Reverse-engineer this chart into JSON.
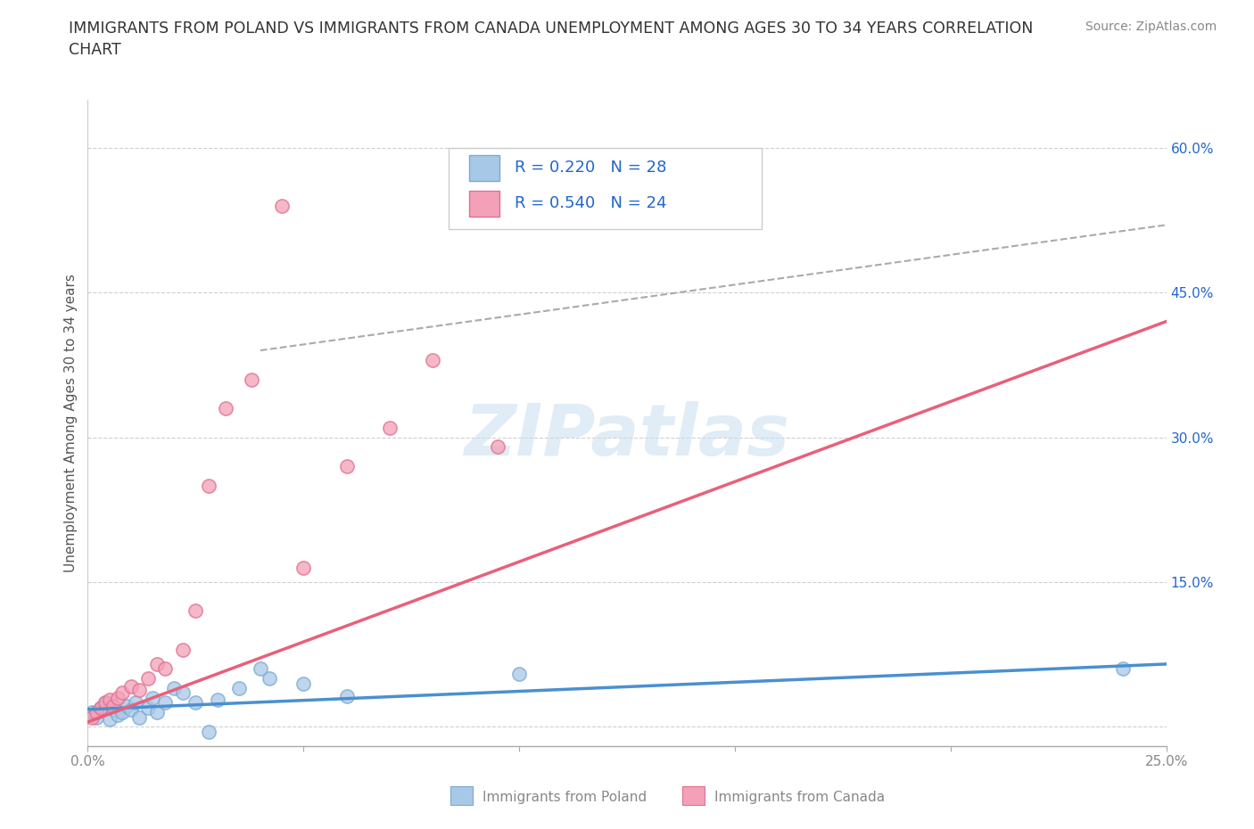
{
  "title": "IMMIGRANTS FROM POLAND VS IMMIGRANTS FROM CANADA UNEMPLOYMENT AMONG AGES 30 TO 34 YEARS CORRELATION\nCHART",
  "source_text": "Source: ZipAtlas.com",
  "ylabel": "Unemployment Among Ages 30 to 34 years",
  "xlim": [
    0.0,
    0.25
  ],
  "ylim": [
    -0.02,
    0.65
  ],
  "xticks": [
    0.0,
    0.05,
    0.1,
    0.15,
    0.2,
    0.25
  ],
  "xticklabels": [
    "0.0%",
    "",
    "",
    "",
    "",
    "25.0%"
  ],
  "yticks": [
    0.0,
    0.15,
    0.3,
    0.45,
    0.6
  ],
  "yticklabels": [
    "",
    "15.0%",
    "30.0%",
    "45.0%",
    "60.0%"
  ],
  "poland_color": "#a8c8e8",
  "canada_color": "#f4a0b8",
  "poland_edge_color": "#7aaad0",
  "canada_edge_color": "#e07090",
  "poland_line_color": "#4a90d0",
  "canada_line_color": "#e8607a",
  "poland_R": 0.22,
  "poland_N": 28,
  "canada_R": 0.54,
  "canada_N": 24,
  "legend_label_poland": "Immigrants from Poland",
  "legend_label_canada": "Immigrants from Canada",
  "watermark": "ZIPatlas",
  "background_color": "#ffffff",
  "grid_color": "#d0d0d0",
  "title_color": "#333333",
  "axis_label_color": "#555555",
  "tick_color": "#888888",
  "legend_text_color": "#2266cc",
  "poland_scatter_x": [
    0.001,
    0.002,
    0.003,
    0.004,
    0.005,
    0.006,
    0.007,
    0.008,
    0.009,
    0.01,
    0.011,
    0.012,
    0.014,
    0.015,
    0.016,
    0.018,
    0.02,
    0.022,
    0.025,
    0.028,
    0.03,
    0.035,
    0.04,
    0.042,
    0.05,
    0.06,
    0.1,
    0.24
  ],
  "poland_scatter_y": [
    0.015,
    0.01,
    0.02,
    0.025,
    0.008,
    0.018,
    0.012,
    0.015,
    0.022,
    0.018,
    0.025,
    0.01,
    0.02,
    0.03,
    0.015,
    0.025,
    0.04,
    0.035,
    0.025,
    -0.005,
    0.028,
    0.04,
    0.06,
    0.05,
    0.045,
    0.032,
    0.055,
    0.06
  ],
  "canada_scatter_x": [
    0.001,
    0.002,
    0.003,
    0.004,
    0.005,
    0.006,
    0.007,
    0.008,
    0.01,
    0.012,
    0.014,
    0.016,
    0.018,
    0.022,
    0.025,
    0.028,
    0.032,
    0.038,
    0.045,
    0.05,
    0.06,
    0.07,
    0.08,
    0.095
  ],
  "canada_scatter_y": [
    0.01,
    0.015,
    0.02,
    0.025,
    0.028,
    0.022,
    0.03,
    0.035,
    0.042,
    0.038,
    0.05,
    0.065,
    0.06,
    0.08,
    0.12,
    0.25,
    0.33,
    0.36,
    0.54,
    0.165,
    0.27,
    0.31,
    0.38,
    0.29
  ],
  "dashed_line_x": [
    0.04,
    0.25
  ],
  "dashed_line_y": [
    0.39,
    0.52
  ],
  "poland_trend_x": [
    0.0,
    0.25
  ],
  "poland_trend_y": [
    0.018,
    0.065
  ],
  "canada_trend_x": [
    0.0,
    0.25
  ],
  "canada_trend_y": [
    0.005,
    0.42
  ]
}
